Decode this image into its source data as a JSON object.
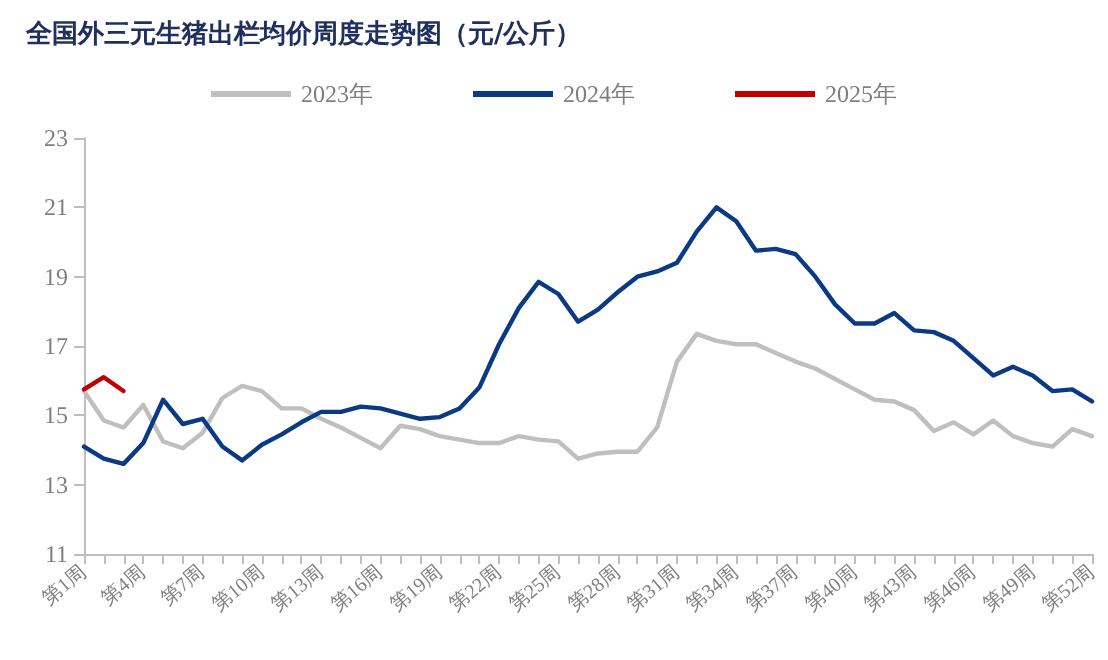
{
  "chart_data": {
    "type": "line",
    "title": "全国外三元生猪出栏均价周度走势图（元/公斤）",
    "categories": [
      "第1周",
      null,
      null,
      "第4周",
      null,
      null,
      "第7周",
      null,
      null,
      "第10周",
      null,
      null,
      "第13周",
      null,
      null,
      "第16周",
      null,
      null,
      "第19周",
      null,
      null,
      "第22周",
      null,
      null,
      "第25周",
      null,
      null,
      "第28周",
      null,
      null,
      "第31周",
      null,
      null,
      "第34周",
      null,
      null,
      "第37周",
      null,
      null,
      "第40周",
      null,
      null,
      "第43周",
      null,
      null,
      "第46周",
      null,
      null,
      "第49周",
      null,
      null,
      "第52周"
    ],
    "series": [
      {
        "name": "2023年",
        "color": "#bfbfbf",
        "values": [
          15.7,
          14.85,
          14.65,
          15.3,
          14.25,
          14.05,
          14.5,
          15.5,
          15.85,
          15.7,
          15.2,
          15.2,
          14.9,
          14.65,
          14.35,
          14.05,
          14.7,
          14.6,
          14.4,
          14.3,
          14.2,
          14.2,
          14.4,
          14.3,
          14.25,
          13.75,
          13.9,
          13.95,
          13.95,
          14.65,
          16.55,
          17.35,
          17.15,
          17.05,
          17.05,
          16.8,
          16.55,
          16.35,
          16.05,
          15.75,
          15.45,
          15.4,
          15.15,
          14.55,
          14.8,
          14.45,
          14.85,
          14.4,
          14.2,
          14.1,
          14.6,
          14.4
        ]
      },
      {
        "name": "2024年",
        "color": "#0a3a84",
        "values": [
          14.1,
          13.75,
          13.6,
          14.2,
          15.45,
          14.75,
          14.9,
          14.1,
          13.7,
          14.15,
          14.45,
          14.8,
          15.1,
          15.1,
          15.25,
          15.2,
          15.05,
          14.9,
          14.95,
          15.2,
          15.8,
          17.05,
          18.1,
          18.85,
          18.5,
          17.7,
          18.05,
          18.55,
          19.0,
          19.15,
          19.4,
          20.3,
          21.0,
          20.6,
          19.75,
          19.8,
          19.65,
          19.0,
          18.2,
          17.65,
          17.65,
          17.95,
          17.45,
          17.4,
          17.15,
          16.65,
          16.15,
          16.4,
          16.15,
          15.7,
          15.75,
          15.4
        ]
      },
      {
        "name": "2025年",
        "color": "#c00000",
        "values": [
          15.75,
          16.1,
          15.7,
          null,
          null,
          null,
          null,
          null,
          null,
          null,
          null,
          null,
          null,
          null,
          null,
          null,
          null,
          null,
          null,
          null,
          null,
          null,
          null,
          null,
          null,
          null,
          null,
          null,
          null,
          null,
          null,
          null,
          null,
          null,
          null,
          null,
          null,
          null,
          null,
          null,
          null,
          null,
          null,
          null,
          null,
          null,
          null,
          null,
          null,
          null,
          null,
          null
        ]
      }
    ],
    "ylim": [
      11,
      23
    ],
    "yticks": [
      11,
      13,
      15,
      17,
      19,
      21,
      23
    ],
    "grid": false,
    "legend": "top",
    "marker": "none",
    "line_style": "solid"
  }
}
